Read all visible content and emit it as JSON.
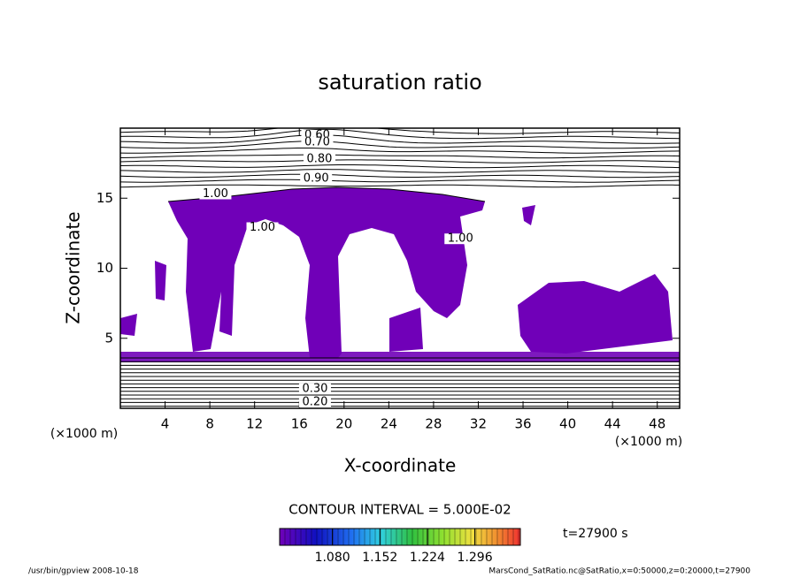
{
  "chart_data": {
    "type": "contour",
    "title": "saturation ratio",
    "xlabel": "X-coordinate",
    "ylabel": "Z-coordinate",
    "x_unit": "(×1000 m)",
    "y_unit": "(×1000 m)",
    "xlim": [
      0,
      50
    ],
    "xticks": [
      4,
      8,
      12,
      16,
      20,
      24,
      28,
      32,
      36,
      40,
      44,
      48
    ],
    "ylim": [
      0,
      20
    ],
    "yticks": [
      5,
      10,
      15
    ],
    "fill_color": "#7000b8",
    "annotations": [
      {
        "text": "0.60",
        "x": 17.6,
        "y": 19.5
      },
      {
        "text": "0.70",
        "x": 17.6,
        "y": 19.0
      },
      {
        "text": "0.80",
        "x": 17.8,
        "y": 17.8
      },
      {
        "text": "0.90",
        "x": 17.5,
        "y": 16.4
      },
      {
        "text": "1.00",
        "x": 8.5,
        "y": 15.3
      },
      {
        "text": "1.00",
        "x": 12.7,
        "y": 12.9
      },
      {
        "text": "1.00",
        "x": 30.4,
        "y": 12.1
      },
      {
        "text": "0.30",
        "x": 17.4,
        "y": 1.4
      },
      {
        "text": "0.20",
        "x": 17.4,
        "y": 0.45
      }
    ],
    "contour_interval": "CONTOUR INTERVAL = 5.000E-02",
    "colorbar": {
      "clim": [
        1.0,
        1.365
      ],
      "ticks": [
        {
          "value": 1.08,
          "label": "1.080"
        },
        {
          "value": 1.152,
          "label": "1.152"
        },
        {
          "value": 1.224,
          "label": "1.224"
        },
        {
          "value": 1.296,
          "label": "1.296"
        }
      ]
    },
    "time_label": "t=27900 s",
    "footer_left": "/usr/bin/gpview   2008-10-18",
    "footer_right": "MarsCond_SatRatio.nc@SatRatio,x=0:50000,z=0:20000,t=27900"
  }
}
